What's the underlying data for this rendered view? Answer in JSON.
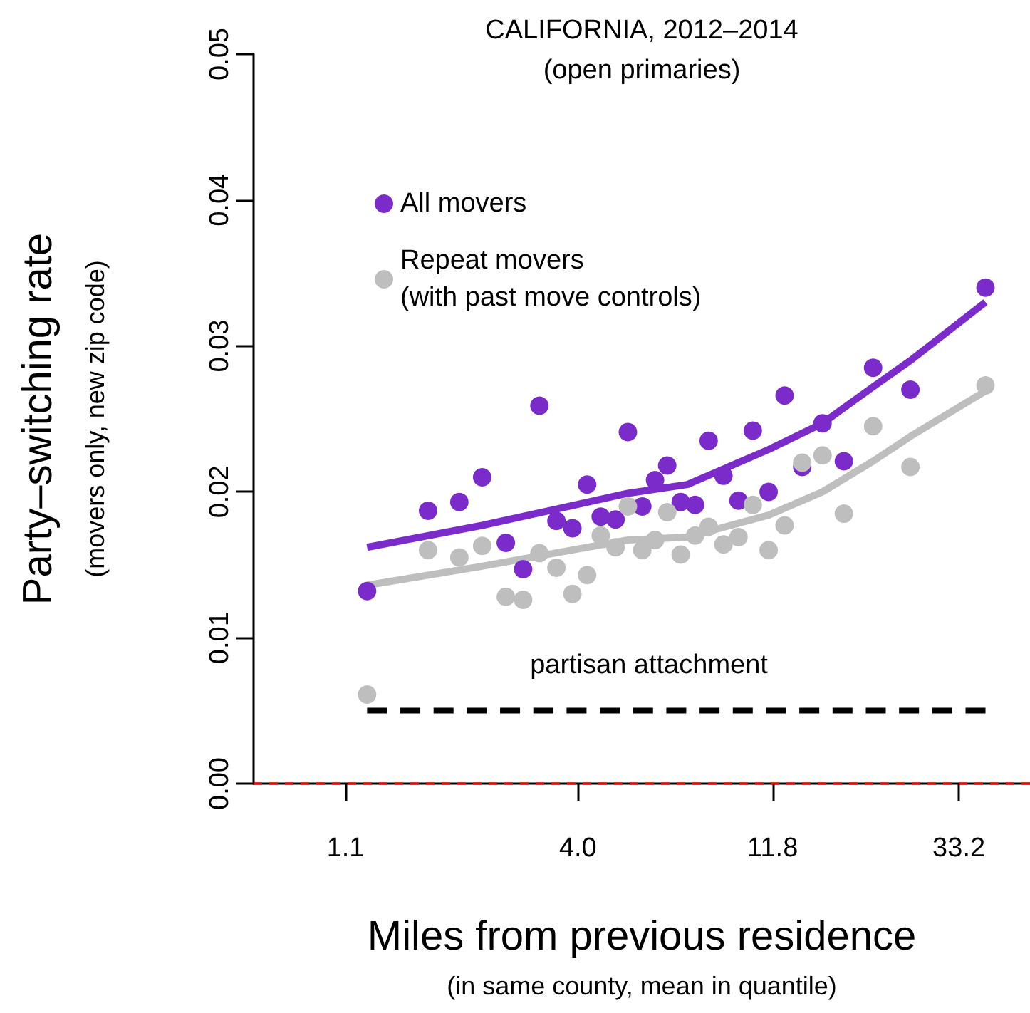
{
  "chart_data": {
    "type": "scatter",
    "title": "CALIFORNIA, 2012–2014",
    "subtitle": "(open primaries)",
    "xlabel": "Miles from previous residence\n(in same county, mean in quantile)",
    "ylabel": "Party–switching rate\n(movers only, new zip code)",
    "x": [
      1.24,
      1.74,
      2.07,
      2.35,
      2.68,
      2.95,
      3.23,
      3.55,
      3.88,
      4.21,
      4.54,
      4.93,
      5.28,
      5.72,
      6.14,
      6.57,
      7.08,
      7.67,
      8.27,
      8.98,
      9.76,
      10.57,
      11.54,
      12.61,
      13.91,
      15.57,
      17.53,
      20.62,
      25.37,
      38.5
    ],
    "series": [
      {
        "name": "All movers",
        "color": "#7b2bc9",
        "values": [
          0.0132,
          0.0187,
          0.0193,
          0.021,
          0.0165,
          0.0147,
          0.0259,
          0.018,
          0.0175,
          0.0205,
          0.0183,
          0.0181,
          0.0241,
          0.019,
          0.0208,
          0.0218,
          0.0193,
          0.0191,
          0.0235,
          0.0211,
          0.0194,
          0.0242,
          0.02,
          0.0266,
          0.0217,
          0.0247,
          0.0221,
          0.0285,
          0.027,
          0.034
        ]
      },
      {
        "name": "Repeat movers\n(with past move controls)",
        "color": "#bebebe",
        "values": [
          0.0061,
          0.016,
          0.0155,
          0.0163,
          0.0128,
          0.0126,
          0.0158,
          0.0148,
          0.013,
          0.0143,
          0.017,
          0.0162,
          0.019,
          0.016,
          0.0167,
          0.0186,
          0.0157,
          0.017,
          0.0176,
          0.0164,
          0.0169,
          0.0191,
          0.016,
          0.0177,
          0.022,
          0.0225,
          0.0185,
          0.0245,
          0.0217,
          0.0273
        ]
      },
      {
        "type": "line",
        "color": "#7b2bc9",
        "marker": "none",
        "x": [
          1.24,
          2.35,
          5.28,
          7.35,
          11.54,
          15.57,
          20.62,
          25.37,
          38.5
        ],
        "values": [
          0.0162,
          0.0177,
          0.0199,
          0.0205,
          0.0229,
          0.0247,
          0.0272,
          0.029,
          0.033
        ]
      },
      {
        "type": "line",
        "color": "#bebebe",
        "marker": "none",
        "x": [
          1.24,
          2.35,
          5.28,
          7.35,
          11.54,
          15.57,
          20.62,
          25.37,
          38.5
        ],
        "values": [
          0.0136,
          0.0149,
          0.0167,
          0.0169,
          0.0184,
          0.02,
          0.0221,
          0.0238,
          0.0269
        ]
      },
      {
        "type": "line",
        "color": "#000000",
        "marker": "none",
        "line_style": "dashed",
        "x": [
          1.24,
          38.5
        ],
        "values": [
          0.005,
          0.005
        ]
      }
    ],
    "annotations": [
      "partisan attachment"
    ],
    "ref_lines": [
      {
        "axis": "y",
        "value": 0,
        "color": "#ff0000",
        "line_style": "dashed"
      }
    ],
    "marker": "circle",
    "log": "x",
    "legend": "top left",
    "xlim": [
      0.66,
      49.3
    ],
    "ylim": [
      0,
      0.05
    ],
    "xticks": [
      1.1,
      {
        "value": 4,
        "label": "4.0"
      },
      11.8,
      33.2
    ],
    "yticks": [
      {
        "value": 0,
        "label": "0.00"
      },
      0.01,
      0.02,
      0.03,
      0.04,
      0.05
    ]
  }
}
